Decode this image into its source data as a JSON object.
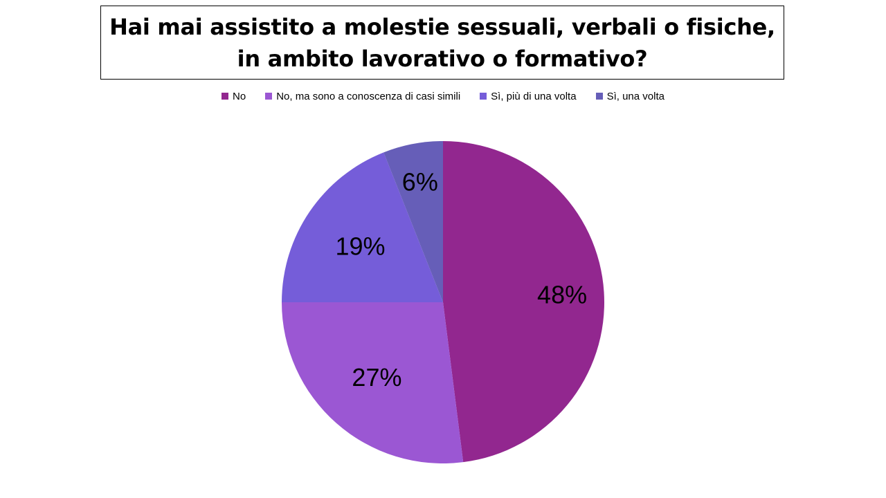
{
  "chart_data": {
    "type": "pie",
    "title": "Hai mai assistito a molestie sessuali, verbali o fisiche, in ambito lavorativo o formativo?",
    "categories": [
      "No",
      "No, ma sono a conoscenza di casi simili",
      "Sì, più di una volta",
      "Sì, una volta"
    ],
    "values": [
      48,
      27,
      19,
      6
    ],
    "labels": [
      "48%",
      "27%",
      "19%",
      "6%"
    ],
    "colors": [
      "#92278f",
      "#9b57d3",
      "#755dd9",
      "#665eb8"
    ],
    "legend_position": "top",
    "start_angle_deg": 0,
    "direction": "clockwise"
  }
}
